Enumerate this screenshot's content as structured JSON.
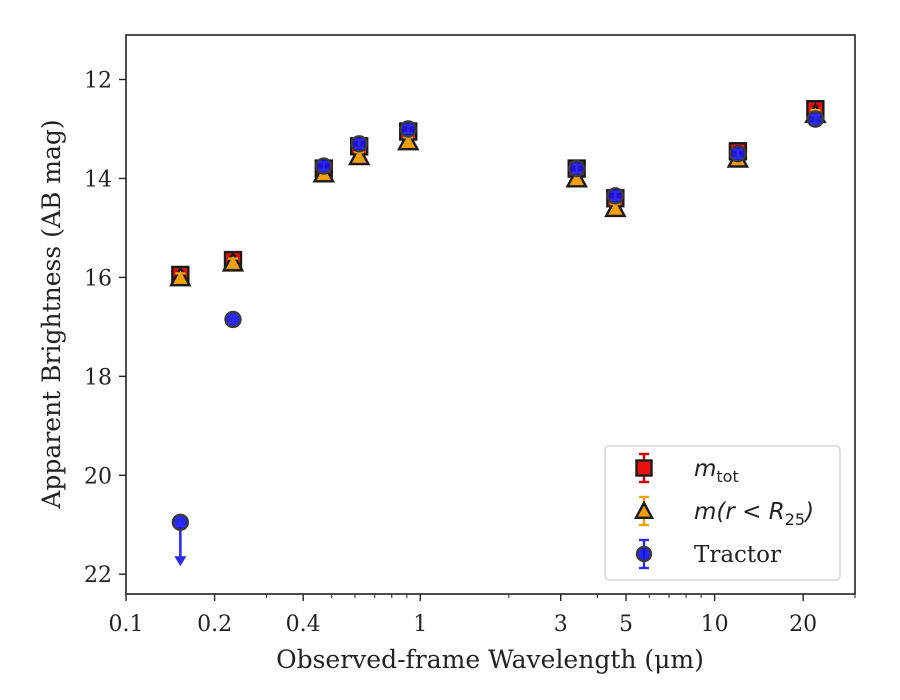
{
  "chart_data": {
    "type": "scatter",
    "xlabel": "Observed-frame Wavelength (μm)",
    "ylabel": "Apparent Brightness (AB mag)",
    "xscale": "log",
    "xlim": [
      0.1,
      30
    ],
    "ylim": [
      22.4,
      11.1
    ],
    "y_inverted": true,
    "grid": false,
    "legend_position": "lower right",
    "x_ticks": [
      {
        "value": 0.1,
        "label": "0.1"
      },
      {
        "value": 0.2,
        "label": "0.2"
      },
      {
        "value": 0.4,
        "label": "0.4"
      },
      {
        "value": 1,
        "label": "1"
      },
      {
        "value": 3,
        "label": "3"
      },
      {
        "value": 5,
        "label": "5"
      },
      {
        "value": 10,
        "label": "10"
      },
      {
        "value": 20,
        "label": "20"
      }
    ],
    "y_ticks": [
      {
        "value": 12,
        "label": "12"
      },
      {
        "value": 14,
        "label": "14"
      },
      {
        "value": 16,
        "label": "16"
      },
      {
        "value": 18,
        "label": "18"
      },
      {
        "value": 20,
        "label": "20"
      },
      {
        "value": 22,
        "label": "22"
      }
    ],
    "series": [
      {
        "name": "m_tot",
        "legend_label": {
          "base": "m",
          "sub": "tot",
          "suffix": ""
        },
        "marker": "square",
        "color": "#e8120c",
        "edge_color": "#1a1a1a",
        "errbar_color": "#d40000",
        "points": [
          {
            "x": 0.153,
            "y": 15.95
          },
          {
            "x": 0.231,
            "y": 15.65
          },
          {
            "x": 0.47,
            "y": 13.8
          },
          {
            "x": 0.62,
            "y": 13.35
          },
          {
            "x": 0.91,
            "y": 13.05
          },
          {
            "x": 3.4,
            "y": 13.8
          },
          {
            "x": 4.6,
            "y": 14.4
          },
          {
            "x": 12.0,
            "y": 13.45
          },
          {
            "x": 22.0,
            "y": 12.6
          }
        ]
      },
      {
        "name": "m(r<R25)",
        "legend_label": {
          "base": "m(r < R",
          "sub": "25",
          "suffix": ")"
        },
        "marker": "triangle",
        "color": "#f29b0c",
        "edge_color": "#1a1a1a",
        "errbar_color": "#f2a20c",
        "points": [
          {
            "x": 0.153,
            "y": 16.0
          },
          {
            "x": 0.231,
            "y": 15.7
          },
          {
            "x": 0.47,
            "y": 13.9
          },
          {
            "x": 0.62,
            "y": 13.55
          },
          {
            "x": 0.91,
            "y": 13.25
          },
          {
            "x": 3.4,
            "y": 14.0
          },
          {
            "x": 4.6,
            "y": 14.6
          },
          {
            "x": 12.0,
            "y": 13.6
          },
          {
            "x": 22.0,
            "y": 12.7
          }
        ]
      },
      {
        "name": "Tractor",
        "legend_label": {
          "base": "Tractor",
          "sub": "",
          "suffix": ""
        },
        "marker": "circle",
        "color": "#1010e8",
        "edge_color": "#3a3a3a",
        "errbar_color": "#2a2af0",
        "points": [
          {
            "x": 0.153,
            "y": 20.95,
            "upper_limit": true
          },
          {
            "x": 0.231,
            "y": 16.85
          },
          {
            "x": 0.47,
            "y": 13.75
          },
          {
            "x": 0.62,
            "y": 13.3
          },
          {
            "x": 0.91,
            "y": 13.0
          },
          {
            "x": 3.4,
            "y": 13.8
          },
          {
            "x": 4.6,
            "y": 14.35
          },
          {
            "x": 12.0,
            "y": 13.5
          },
          {
            "x": 22.0,
            "y": 12.8
          }
        ]
      }
    ]
  }
}
